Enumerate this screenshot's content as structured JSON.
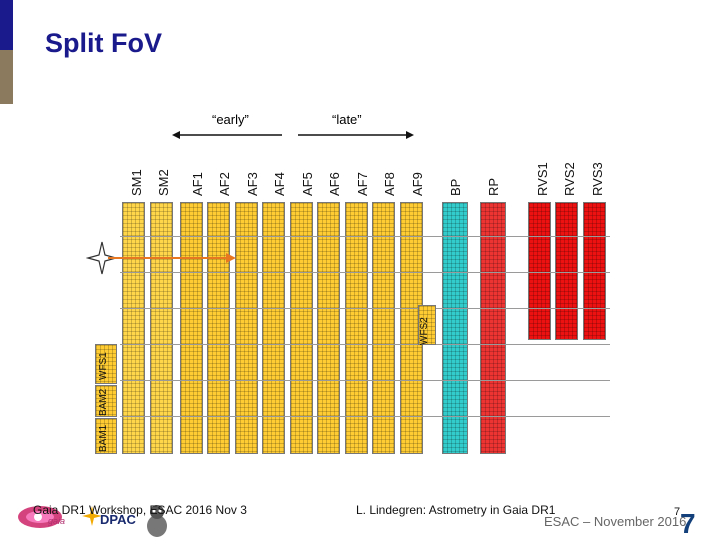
{
  "title": "Split FoV",
  "labels": {
    "early": "“early”",
    "late": "“late”"
  },
  "columns": [
    {
      "name": "SM1",
      "color": "#ffd54a"
    },
    {
      "name": "SM2",
      "color": "#ffd54a"
    },
    {
      "name": "AF1",
      "color": "#ffcc33"
    },
    {
      "name": "AF2",
      "color": "#ffcc33"
    },
    {
      "name": "AF3",
      "color": "#ffcc33"
    },
    {
      "name": "AF4",
      "color": "#ffcc33"
    },
    {
      "name": "AF5",
      "color": "#ffcc33"
    },
    {
      "name": "AF6",
      "color": "#ffcc33"
    },
    {
      "name": "AF7",
      "color": "#ffcc33"
    },
    {
      "name": "AF8",
      "color": "#ffcc33"
    },
    {
      "name": "AF9",
      "color": "#ffcc33"
    },
    {
      "name": "BP",
      "color": "#33cccc"
    },
    {
      "name": "RP",
      "color": "#ee3333"
    },
    {
      "name": "RVS1",
      "color": "#ee1111"
    },
    {
      "name": "RVS2",
      "color": "#ee1111"
    },
    {
      "name": "RVS3",
      "color": "#ee1111"
    }
  ],
  "bottom_labels": {
    "bam1": "BAM1",
    "bam2": "BAM2",
    "wfs1": "WFS1",
    "wfs2": "WFS2"
  },
  "footer": {
    "left": "Gaia DR1 Workshop, ESAC 2016 Nov 3",
    "center": "L. Lindegren: Astrometry in Gaia DR1",
    "right": "ESAC – November 2016",
    "page_small": "7",
    "page_big": "7"
  },
  "logos": {
    "gaia": "gaia",
    "dpac": "DPAC"
  }
}
